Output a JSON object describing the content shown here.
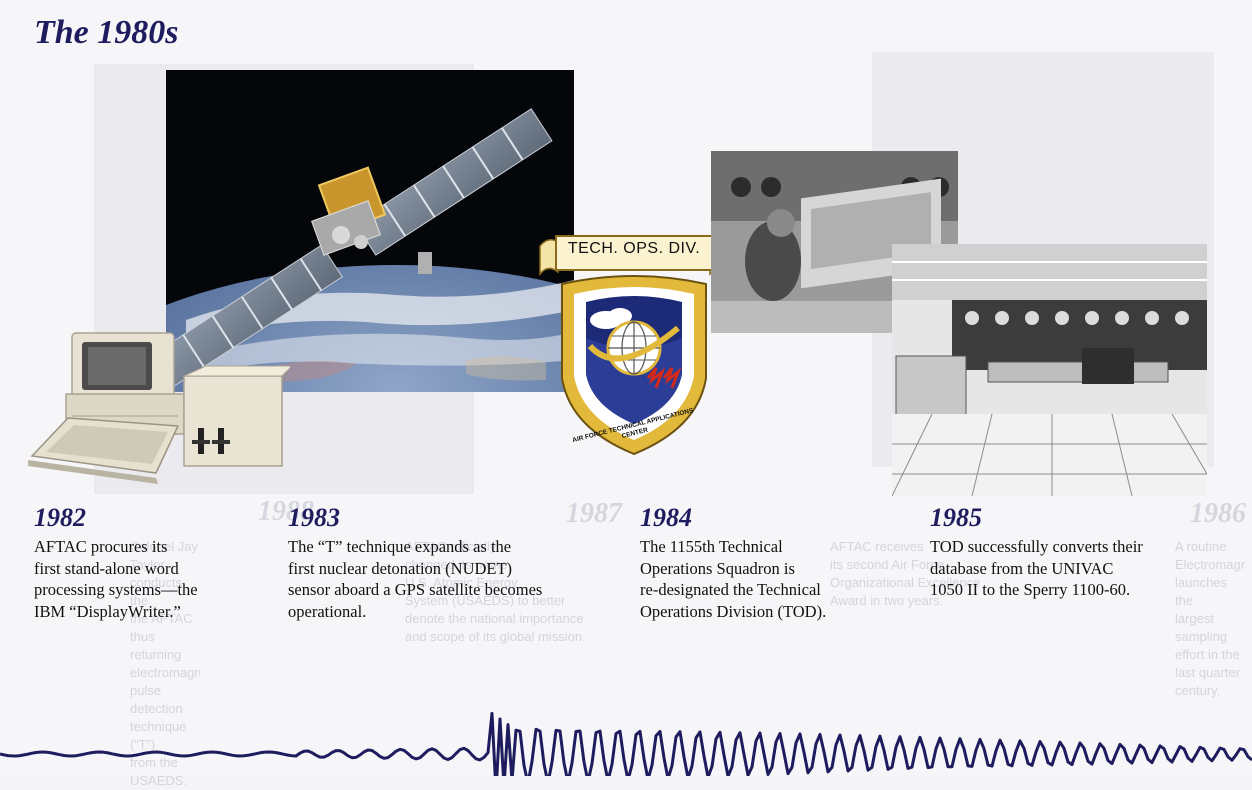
{
  "header": {
    "title": "The 1980s"
  },
  "badge": {
    "banner_text": "TECH. OPS. DIV.",
    "ring_text": "AIR FORCE TECHNICAL APPLICATIONS CENTER"
  },
  "timeline": [
    {
      "year": "1982",
      "text": "AFTAC procures its\nfirst stand-alone word\nprocessing systems—the\nIBM “DisplayWriter.”"
    },
    {
      "year": "1983",
      "text": "The “T” technique expands as the\nfirst nuclear detonation (NUDET)\nsensor aboard a GPS satellite becomes\noperational."
    },
    {
      "year": "1984",
      "text": "The 1155th Technical\nOperations Squadron is\nre-designated the Technical\nOperations Division (TOD)."
    },
    {
      "year": "1985",
      "text": "TOD successfully converts their\ndatabase from the UNIVAC\n1050 II to the Sperry 1100-60."
    }
  ],
  "bleed_through": {
    "years": [
      "1987",
      "1986",
      "1988"
    ],
    "texts": [
      "AFTAC officially\nchanged its name\nU.S. Atomic Energy\nSystem (USAEDS) to better\ndenote the national importance\nand scope of its global mission.",
      "AFTAC receives\nits second Air Force\nOrganizational Excellence\nAward in two years.",
      "A routine\nElectromagnetic\nlaunches the\nlargest sampling effort in the\nlast quarter century.",
      "Colonel Jay Taylor\nconducts the\nthe AFTAC\nthus returning\nelectromagnetic pulse\ndetection technique (“T”)\nfrom the USAEDS."
    ]
  },
  "colors": {
    "heading": "#1e1c5e",
    "body_text": "#111111",
    "seismograph": "#1e1c5e",
    "page": "#f6f6f8",
    "badge_blue": "#1d2a78",
    "badge_gold": "#e2b93b"
  }
}
